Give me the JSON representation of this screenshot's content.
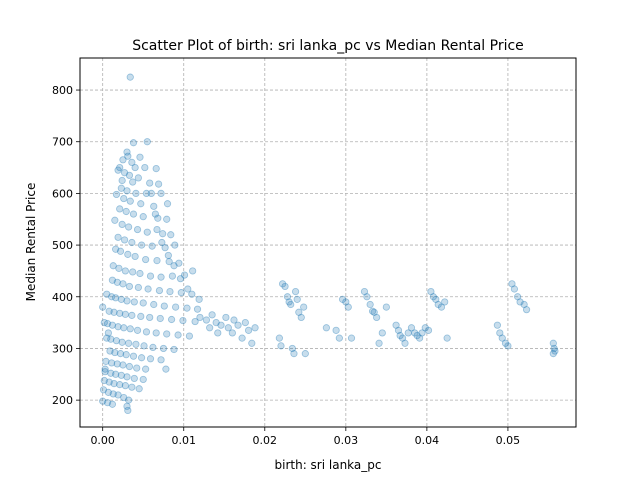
{
  "chart_data": {
    "type": "scatter",
    "title": "Scatter Plot of birth: sri lanka_pc vs Median Rental Price",
    "xlabel": "birth: sri lanka_pc",
    "ylabel": "Median Rental Price",
    "xlim": [
      -0.0028,
      0.0584
    ],
    "ylim": [
      148,
      862
    ],
    "xticks": [
      {
        "value": 0.0,
        "label": "0.00"
      },
      {
        "value": 0.01,
        "label": "0.01"
      },
      {
        "value": 0.02,
        "label": "0.02"
      },
      {
        "value": 0.03,
        "label": "0.03"
      },
      {
        "value": 0.04,
        "label": "0.04"
      },
      {
        "value": 0.05,
        "label": "0.05"
      }
    ],
    "yticks": [
      {
        "value": 200,
        "label": "200"
      },
      {
        "value": 300,
        "label": "300"
      },
      {
        "value": 400,
        "label": "400"
      },
      {
        "value": 500,
        "label": "500"
      },
      {
        "value": 600,
        "label": "600"
      },
      {
        "value": 700,
        "label": "700"
      },
      {
        "value": 800,
        "label": "800"
      }
    ],
    "grid": true,
    "marker_color": "#1f77b4",
    "marker_alpha": 0.25,
    "points": [
      [
        0.0034,
        825
      ],
      [
        0.0038,
        698
      ],
      [
        0.003,
        680
      ],
      [
        0.0031,
        672
      ],
      [
        0.0046,
        670
      ],
      [
        0.0025,
        665
      ],
      [
        0.0036,
        660
      ],
      [
        0.0021,
        650
      ],
      [
        0.004,
        650
      ],
      [
        0.0052,
        650
      ],
      [
        0.0066,
        648
      ],
      [
        0.0019,
        645
      ],
      [
        0.0027,
        640
      ],
      [
        0.0033,
        635
      ],
      [
        0.0044,
        630
      ],
      [
        0.0024,
        625
      ],
      [
        0.0037,
        622
      ],
      [
        0.0058,
        620
      ],
      [
        0.0069,
        618
      ],
      [
        0.0023,
        610
      ],
      [
        0.003,
        605
      ],
      [
        0.0041,
        600
      ],
      [
        0.0054,
        600
      ],
      [
        0.0072,
        600
      ],
      [
        0.0017,
        598
      ],
      [
        0.0026,
        590
      ],
      [
        0.0034,
        585
      ],
      [
        0.0047,
        580
      ],
      [
        0.0063,
        575
      ],
      [
        0.008,
        580
      ],
      [
        0.0021,
        570
      ],
      [
        0.0029,
        565
      ],
      [
        0.0038,
        560
      ],
      [
        0.005,
        555
      ],
      [
        0.0068,
        552
      ],
      [
        0.0079,
        550
      ],
      [
        0.0015,
        548
      ],
      [
        0.0024,
        540
      ],
      [
        0.0032,
        535
      ],
      [
        0.0043,
        530
      ],
      [
        0.0055,
        525
      ],
      [
        0.0074,
        522
      ],
      [
        0.0084,
        520
      ],
      [
        0.0019,
        515
      ],
      [
        0.0027,
        510
      ],
      [
        0.0036,
        505
      ],
      [
        0.0048,
        500
      ],
      [
        0.0061,
        498
      ],
      [
        0.0077,
        495
      ],
      [
        0.0089,
        500
      ],
      [
        0.0016,
        492
      ],
      [
        0.0022,
        488
      ],
      [
        0.0031,
        482
      ],
      [
        0.004,
        478
      ],
      [
        0.0053,
        472
      ],
      [
        0.0067,
        470
      ],
      [
        0.0082,
        468
      ],
      [
        0.0094,
        465
      ],
      [
        0.0013,
        460
      ],
      [
        0.002,
        455
      ],
      [
        0.0028,
        450
      ],
      [
        0.0037,
        448
      ],
      [
        0.0046,
        445
      ],
      [
        0.0059,
        440
      ],
      [
        0.0072,
        438
      ],
      [
        0.0086,
        440
      ],
      [
        0.0101,
        442
      ],
      [
        0.0111,
        450
      ],
      [
        0.0012,
        432
      ],
      [
        0.0018,
        428
      ],
      [
        0.0025,
        425
      ],
      [
        0.0033,
        420
      ],
      [
        0.0044,
        418
      ],
      [
        0.0056,
        415
      ],
      [
        0.007,
        412
      ],
      [
        0.0083,
        410
      ],
      [
        0.0097,
        408
      ],
      [
        0.011,
        405
      ],
      [
        0.0011,
        400
      ],
      [
        0.0016,
        398
      ],
      [
        0.0023,
        395
      ],
      [
        0.003,
        392
      ],
      [
        0.0039,
        390
      ],
      [
        0.005,
        388
      ],
      [
        0.0063,
        385
      ],
      [
        0.0076,
        382
      ],
      [
        0.009,
        380
      ],
      [
        0.0104,
        378
      ],
      [
        0.0117,
        376
      ],
      [
        0.0008,
        372
      ],
      [
        0.0014,
        370
      ],
      [
        0.0021,
        368
      ],
      [
        0.0028,
        366
      ],
      [
        0.0036,
        364
      ],
      [
        0.0047,
        362
      ],
      [
        0.0058,
        360
      ],
      [
        0.0071,
        358
      ],
      [
        0.0085,
        356
      ],
      [
        0.0099,
        354
      ],
      [
        0.0114,
        352
      ],
      [
        0.0006,
        348
      ],
      [
        0.0012,
        345
      ],
      [
        0.0019,
        342
      ],
      [
        0.0026,
        340
      ],
      [
        0.0034,
        338
      ],
      [
        0.0043,
        335
      ],
      [
        0.0054,
        332
      ],
      [
        0.0066,
        330
      ],
      [
        0.0079,
        328
      ],
      [
        0.0093,
        326
      ],
      [
        0.0107,
        324
      ],
      [
        0.0005,
        320
      ],
      [
        0.001,
        318
      ],
      [
        0.0017,
        315
      ],
      [
        0.0024,
        312
      ],
      [
        0.0032,
        310
      ],
      [
        0.0041,
        308
      ],
      [
        0.0051,
        305
      ],
      [
        0.0062,
        302
      ],
      [
        0.0075,
        300
      ],
      [
        0.0088,
        298
      ],
      [
        0.0009,
        295
      ],
      [
        0.0015,
        292
      ],
      [
        0.0022,
        290
      ],
      [
        0.0029,
        288
      ],
      [
        0.0038,
        285
      ],
      [
        0.0048,
        282
      ],
      [
        0.0059,
        280
      ],
      [
        0.0072,
        278
      ],
      [
        0.0004,
        275
      ],
      [
        0.0011,
        272
      ],
      [
        0.0018,
        270
      ],
      [
        0.0025,
        268
      ],
      [
        0.0033,
        265
      ],
      [
        0.0042,
        262
      ],
      [
        0.0053,
        260
      ],
      [
        0.0078,
        260
      ],
      [
        0.0003,
        255
      ],
      [
        0.001,
        252
      ],
      [
        0.0016,
        250
      ],
      [
        0.0023,
        248
      ],
      [
        0.003,
        245
      ],
      [
        0.0039,
        242
      ],
      [
        0.005,
        240
      ],
      [
        0.0002,
        238
      ],
      [
        0.0008,
        235
      ],
      [
        0.0014,
        232
      ],
      [
        0.0021,
        230
      ],
      [
        0.0028,
        228
      ],
      [
        0.0036,
        225
      ],
      [
        0.0045,
        222
      ],
      [
        0.0001,
        220
      ],
      [
        0.0007,
        215
      ],
      [
        0.0013,
        212
      ],
      [
        0.0019,
        210
      ],
      [
        0.0026,
        205
      ],
      [
        0.0032,
        200
      ],
      [
        0.0,
        198
      ],
      [
        0.0006,
        195
      ],
      [
        0.0012,
        192
      ],
      [
        0.003,
        188
      ],
      [
        0.0031,
        180
      ],
      [
        0.0003,
        260
      ],
      [
        0.0005,
        405
      ],
      [
        0.0,
        380
      ],
      [
        0.0002,
        350
      ],
      [
        0.0007,
        330
      ],
      [
        0.0055,
        700
      ],
      [
        0.006,
        600
      ],
      [
        0.0065,
        560
      ],
      [
        0.0067,
        530
      ],
      [
        0.0073,
        505
      ],
      [
        0.0081,
        480
      ],
      [
        0.0088,
        460
      ],
      [
        0.0096,
        435
      ],
      [
        0.0105,
        415
      ],
      [
        0.0119,
        395
      ],
      [
        0.012,
        360
      ],
      [
        0.0128,
        355
      ],
      [
        0.0132,
        340
      ],
      [
        0.0135,
        365
      ],
      [
        0.014,
        350
      ],
      [
        0.0142,
        330
      ],
      [
        0.0146,
        345
      ],
      [
        0.0152,
        360
      ],
      [
        0.0155,
        340
      ],
      [
        0.016,
        330
      ],
      [
        0.0162,
        355
      ],
      [
        0.0167,
        345
      ],
      [
        0.0172,
        320
      ],
      [
        0.0176,
        350
      ],
      [
        0.018,
        335
      ],
      [
        0.0184,
        310
      ],
      [
        0.0188,
        340
      ],
      [
        0.0218,
        320
      ],
      [
        0.022,
        305
      ],
      [
        0.0222,
        425
      ],
      [
        0.0225,
        420
      ],
      [
        0.0228,
        400
      ],
      [
        0.023,
        390
      ],
      [
        0.0232,
        385
      ],
      [
        0.0234,
        300
      ],
      [
        0.0236,
        290
      ],
      [
        0.0238,
        410
      ],
      [
        0.024,
        395
      ],
      [
        0.0242,
        370
      ],
      [
        0.0245,
        360
      ],
      [
        0.0248,
        380
      ],
      [
        0.025,
        290
      ],
      [
        0.0276,
        340
      ],
      [
        0.0288,
        335
      ],
      [
        0.0292,
        320
      ],
      [
        0.0296,
        395
      ],
      [
        0.03,
        390
      ],
      [
        0.0303,
        380
      ],
      [
        0.0307,
        320
      ],
      [
        0.0323,
        410
      ],
      [
        0.0326,
        400
      ],
      [
        0.033,
        385
      ],
      [
        0.0333,
        372
      ],
      [
        0.0335,
        370
      ],
      [
        0.0338,
        360
      ],
      [
        0.0341,
        310
      ],
      [
        0.0345,
        330
      ],
      [
        0.035,
        380
      ],
      [
        0.0362,
        345
      ],
      [
        0.0365,
        335
      ],
      [
        0.0367,
        325
      ],
      [
        0.037,
        320
      ],
      [
        0.0373,
        310
      ],
      [
        0.0377,
        330
      ],
      [
        0.0381,
        340
      ],
      [
        0.0385,
        330
      ],
      [
        0.0388,
        325
      ],
      [
        0.0391,
        320
      ],
      [
        0.0394,
        330
      ],
      [
        0.0398,
        340
      ],
      [
        0.0402,
        335
      ],
      [
        0.0405,
        410
      ],
      [
        0.0408,
        400
      ],
      [
        0.0411,
        395
      ],
      [
        0.0414,
        385
      ],
      [
        0.0418,
        380
      ],
      [
        0.0422,
        390
      ],
      [
        0.0425,
        320
      ],
      [
        0.0487,
        345
      ],
      [
        0.049,
        330
      ],
      [
        0.0493,
        320
      ],
      [
        0.0497,
        310
      ],
      [
        0.05,
        305
      ],
      [
        0.0505,
        425
      ],
      [
        0.0508,
        415
      ],
      [
        0.0512,
        400
      ],
      [
        0.0515,
        390
      ],
      [
        0.052,
        385
      ],
      [
        0.0523,
        375
      ],
      [
        0.0556,
        310
      ],
      [
        0.0557,
        300
      ],
      [
        0.0558,
        295
      ],
      [
        0.0556,
        290
      ]
    ]
  }
}
